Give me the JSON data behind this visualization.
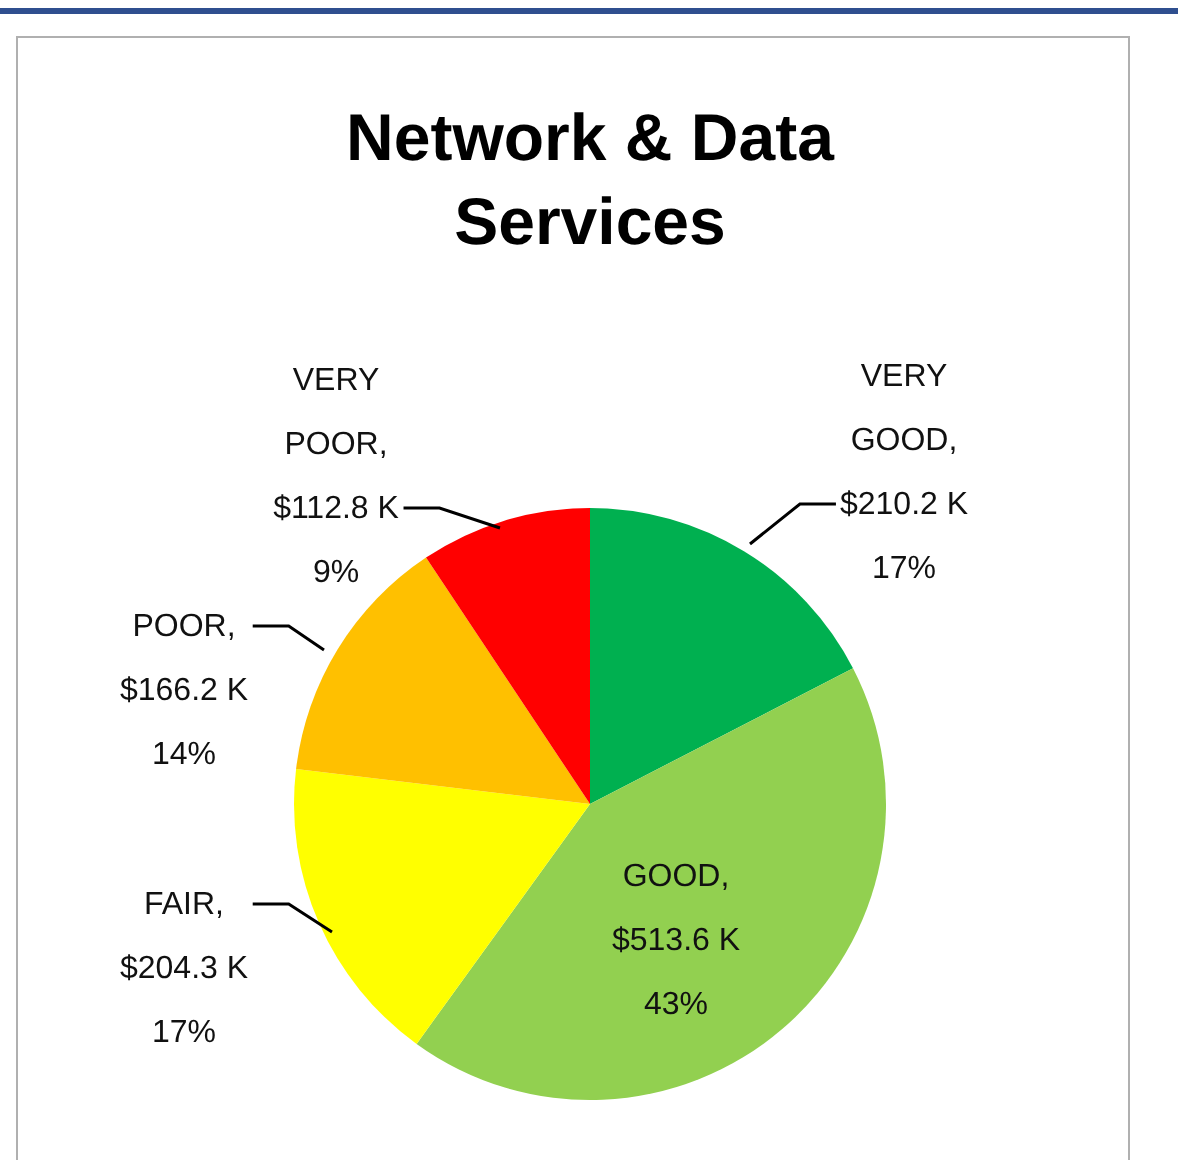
{
  "chart_data": {
    "type": "pie",
    "title": "Network & Data Services",
    "categories": [
      "VERY GOOD",
      "GOOD",
      "FAIR",
      "POOR",
      "VERY POOR"
    ],
    "values": [
      210.2,
      513.6,
      204.3,
      166.2,
      112.8
    ],
    "colors": [
      "#00b050",
      "#92d050",
      "#ffff00",
      "#ffc000",
      "#ff0000"
    ],
    "value_labels": [
      ", $210.2 K 17%",
      ", $513.6 K 43%",
      ", $204.3 K 17%",
      ", $166.2 K 14%",
      ", $112.8 K 9%"
    ],
    "legend": false
  }
}
